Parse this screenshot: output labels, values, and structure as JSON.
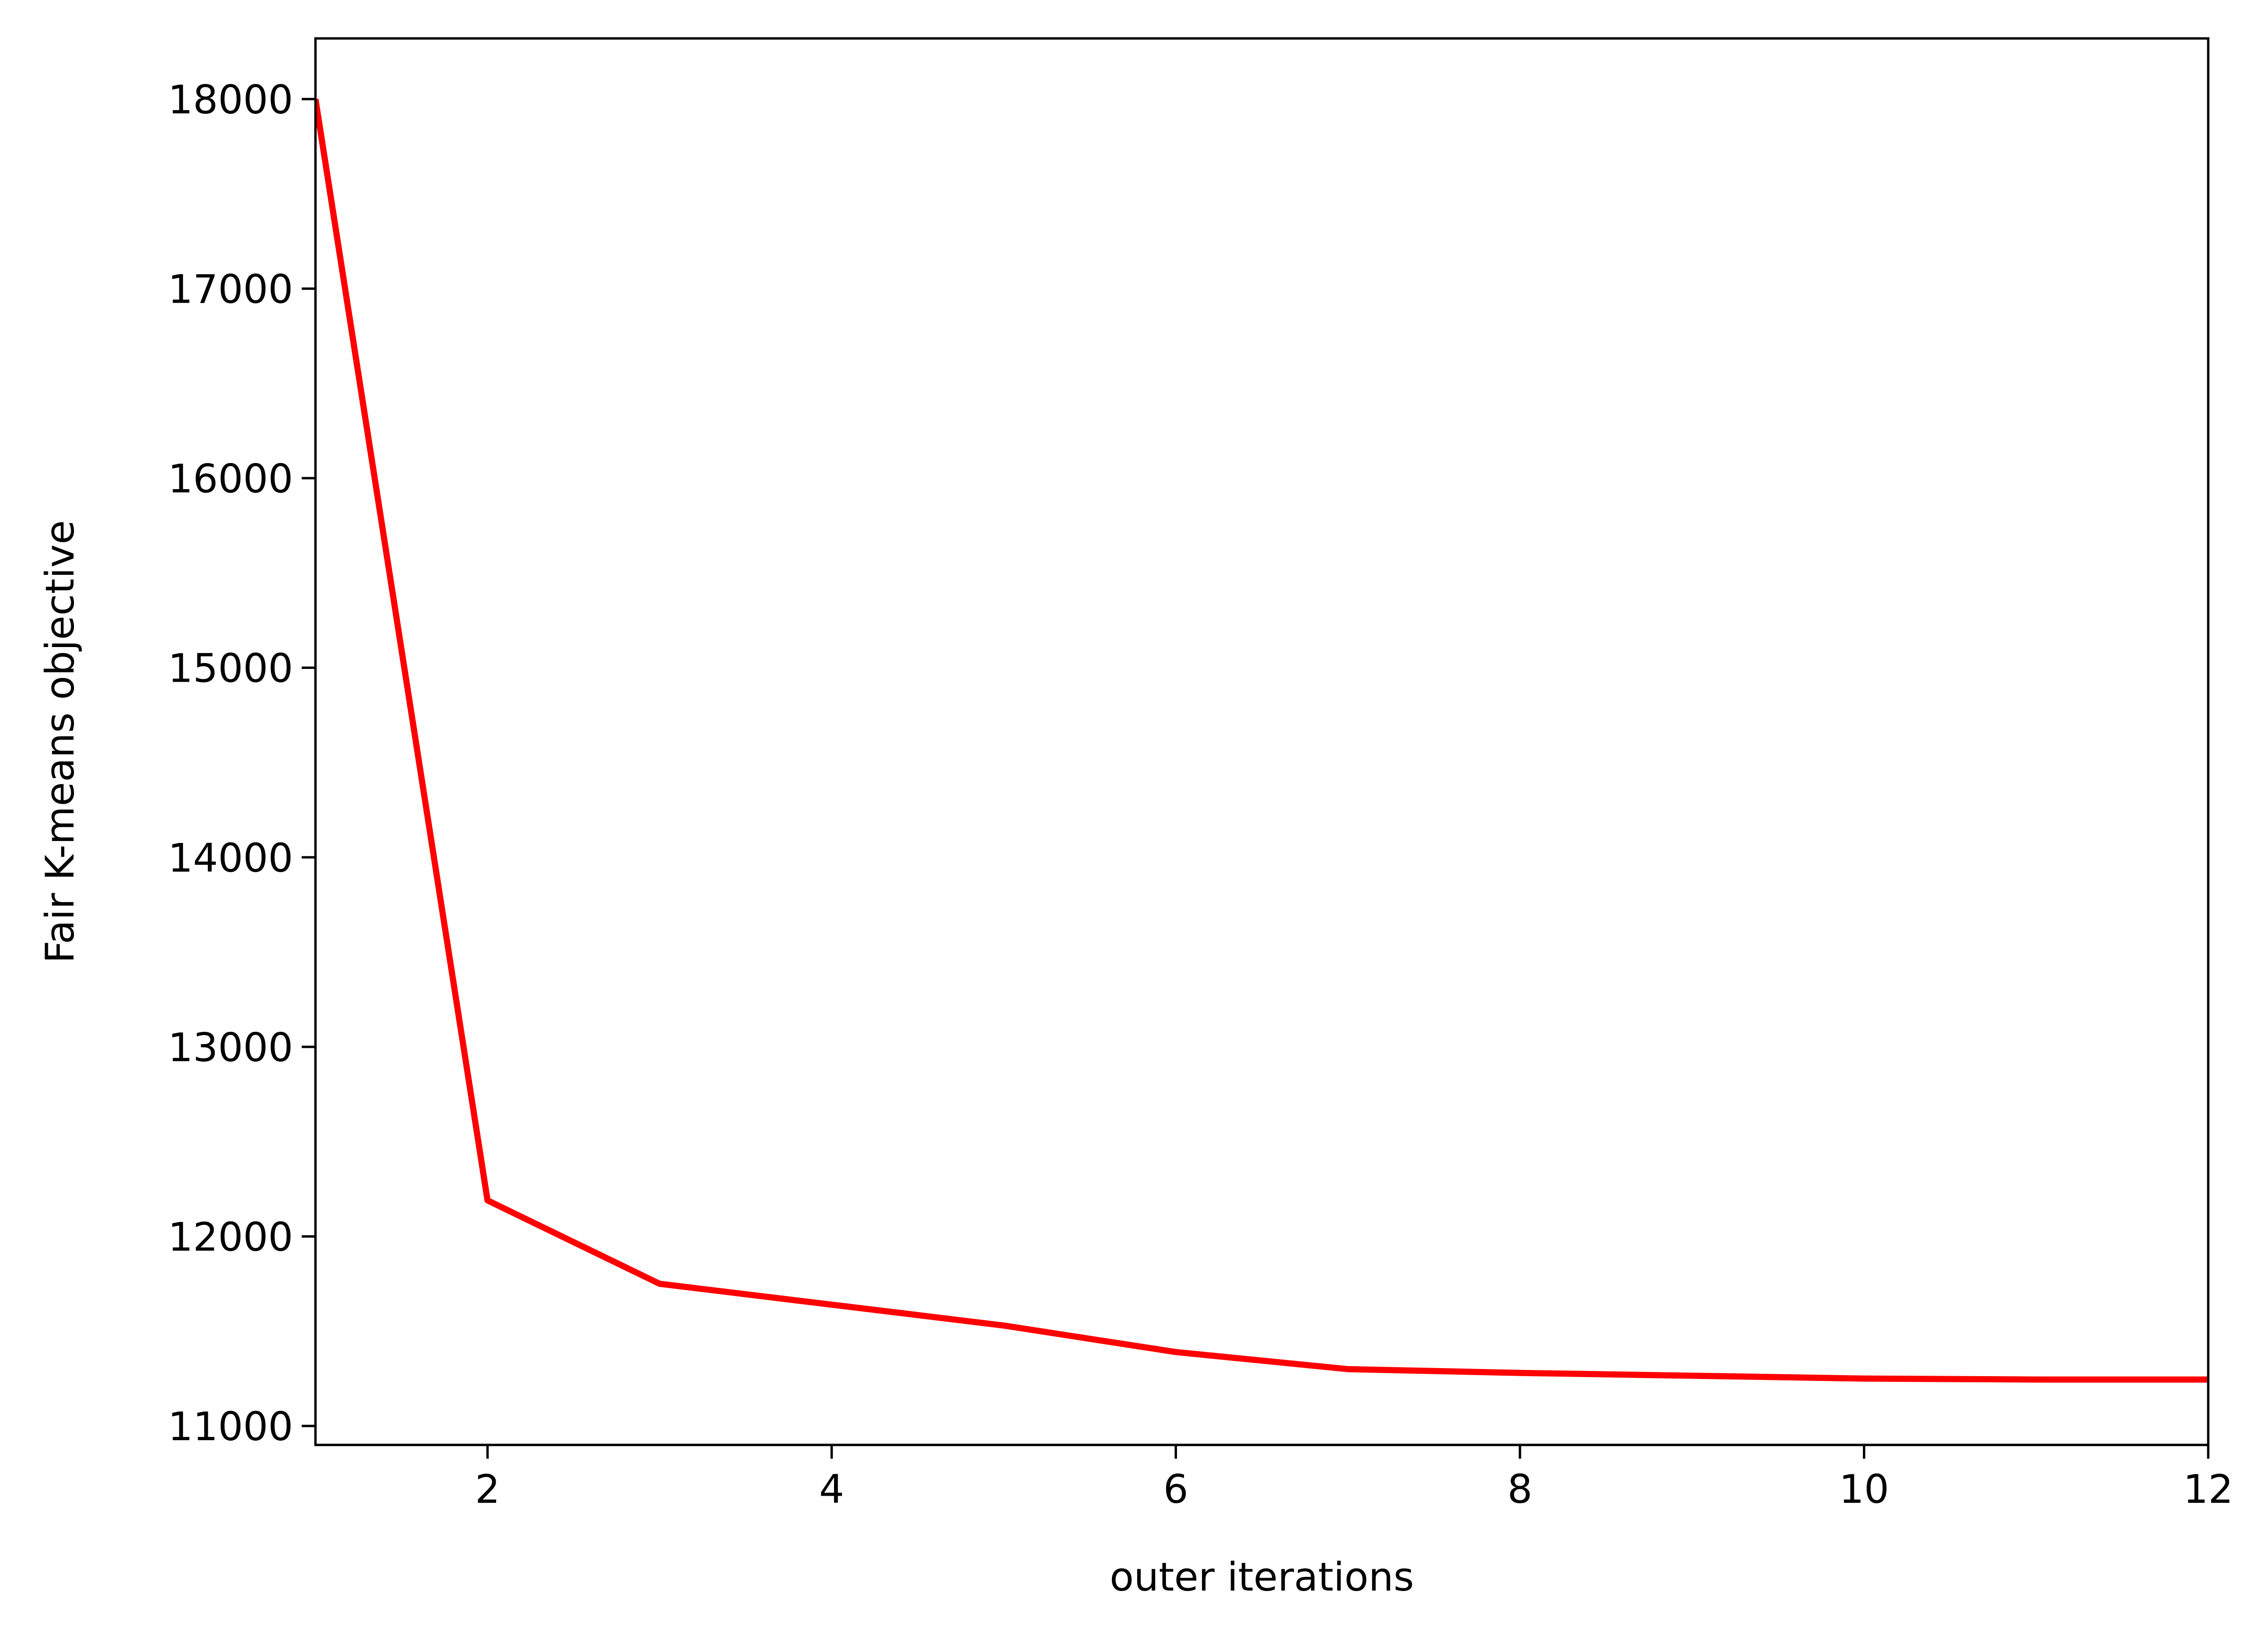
{
  "chart_data": {
    "type": "line",
    "title": "",
    "xlabel": "outer iterations",
    "ylabel": "Fair K-means objective",
    "xlim": [
      1,
      12
    ],
    "ylim": [
      10900,
      18320
    ],
    "x_ticks": [
      2,
      4,
      6,
      8,
      10,
      12
    ],
    "y_ticks": [
      11000,
      12000,
      13000,
      14000,
      15000,
      16000,
      17000,
      18000
    ],
    "x_tick_labels": [
      "2",
      "4",
      "6",
      "8",
      "10",
      "12"
    ],
    "y_tick_labels": [
      "11000",
      "12000",
      "13000",
      "14000",
      "15000",
      "16000",
      "17000",
      "18000"
    ],
    "grid": false,
    "legend": "none",
    "series": [
      {
        "color": "#ff0000",
        "x": [
          1,
          2,
          3,
          4,
          5,
          6,
          7,
          8,
          9,
          10,
          11,
          12
        ],
        "y": [
          18000,
          12190,
          11750,
          11640,
          11530,
          11390,
          11300,
          11280,
          11265,
          11250,
          11245,
          11245
        ]
      }
    ]
  }
}
